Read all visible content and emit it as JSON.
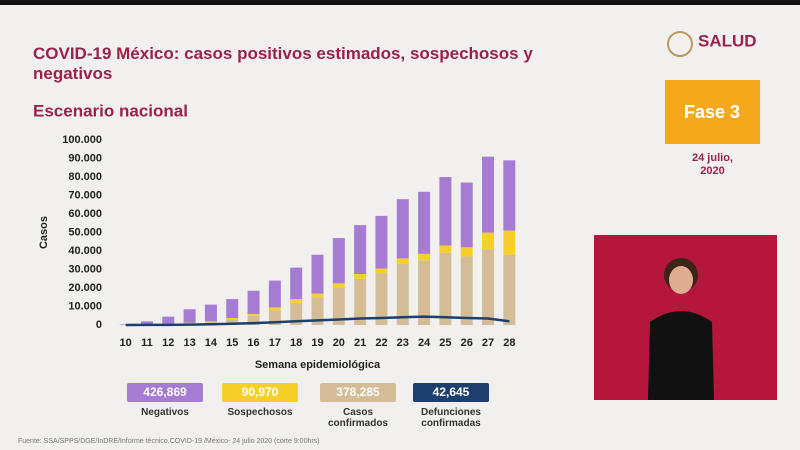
{
  "header": {
    "logo": "SALUD",
    "phase": "Fase 3",
    "date": "24 julio, 2020"
  },
  "footer": "Fuente: SSA/SPPS/DGE/InDRE/Informe técnico.COVID-19 /México- 24 julio 2020 (corte 9:00hrs)",
  "chart_data": {
    "type": "bar",
    "stacked": true,
    "title": "COVID-19 México: casos positivos estimados, sospechosos y negativos",
    "subtitle": "Escenario nacional",
    "x_label": "Semana epidemiológica",
    "y_label": "Casos",
    "categories": [
      "10",
      "11",
      "12",
      "13",
      "14",
      "15",
      "16",
      "17",
      "18",
      "19",
      "20",
      "21",
      "22",
      "23",
      "24",
      "25",
      "26",
      "27",
      "28"
    ],
    "ylim": [
      0,
      100000
    ],
    "yticks": [
      0,
      {
        "value": 10000,
        "label": "10.000"
      },
      {
        "value": 20000,
        "label": "20.000"
      },
      {
        "value": 30000,
        "label": "30.000"
      },
      {
        "value": 40000,
        "label": "40.000"
      },
      {
        "value": 50000,
        "label": "50.000"
      },
      {
        "value": 60000,
        "label": "60.000"
      },
      {
        "value": 70000,
        "label": "70.000"
      },
      {
        "value": 80000,
        "label": "80.000"
      },
      {
        "value": 90000,
        "label": "90.000"
      },
      {
        "value": 100000,
        "label": "100.000"
      }
    ],
    "grid": false,
    "series": [
      {
        "name": "Casos confirmados",
        "color": "#d4bd96",
        "total": "378,285",
        "values": [
          0,
          200,
          500,
          900,
          1500,
          3000,
          5000,
          8000,
          12000,
          15000,
          20000,
          25000,
          28000,
          33000,
          35000,
          39000,
          37000,
          41000,
          38000
        ]
      },
      {
        "name": "Sospechosos",
        "color": "#f7cf2a",
        "total": "90,970",
        "values": [
          0,
          100,
          200,
          300,
          500,
          800,
          1000,
          1500,
          2000,
          2000,
          2500,
          2500,
          2500,
          3000,
          3500,
          4000,
          5000,
          9000,
          13000
        ]
      },
      {
        "name": "Negativos",
        "color": "#a67bd2",
        "total": "426,869",
        "values": [
          300,
          1700,
          3800,
          7300,
          9000,
          10200,
          12500,
          14500,
          17000,
          21000,
          24500,
          26500,
          28500,
          32000,
          33500,
          37000,
          35000,
          41000,
          38000
        ]
      },
      {
        "name": "Defunciones confirmadas",
        "color": "#1d3f6e",
        "type": "line",
        "total": "42,645",
        "values": [
          0,
          50,
          100,
          200,
          400,
          700,
          1000,
          1500,
          2000,
          2500,
          3000,
          3500,
          3800,
          4200,
          4500,
          4200,
          3800,
          3500,
          2000
        ]
      }
    ]
  }
}
